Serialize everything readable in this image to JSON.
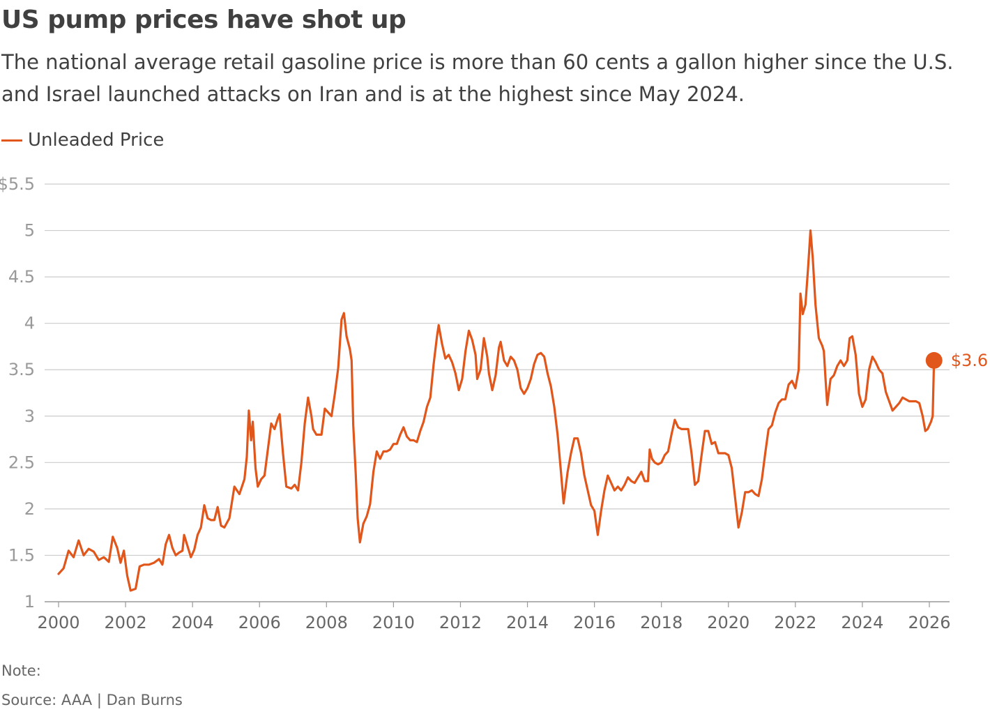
{
  "header": {
    "title": "US pump prices have shot up",
    "subtitle": "The national average retail gasoline price is more than 60 cents a gallon higher since the U.S. and Israel launched attacks on Iran and is at the highest since May 2024."
  },
  "footer": {
    "note": "Note:",
    "source": "Source: AAA | Dan Burns"
  },
  "colors": {
    "series": "#e0561b",
    "grid": "#cccccc",
    "text": "#404040"
  },
  "chart_data": {
    "type": "line",
    "title": "US pump prices have shot up",
    "xlabel": "",
    "ylabel": "",
    "xlim": [
      2000,
      2026.5
    ],
    "ylim": [
      1,
      5.5
    ],
    "grid": true,
    "legend_position": "top-left",
    "y_ticks": [
      {
        "value": 5.5,
        "label": "$5.5"
      },
      {
        "value": 5,
        "label": "5"
      },
      {
        "value": 4.5,
        "label": "4.5"
      },
      {
        "value": 4,
        "label": "4"
      },
      {
        "value": 3.5,
        "label": "3.5"
      },
      {
        "value": 3,
        "label": "3"
      },
      {
        "value": 2.5,
        "label": "2.5"
      },
      {
        "value": 2,
        "label": "2"
      },
      {
        "value": 1.5,
        "label": "1.5"
      },
      {
        "value": 1,
        "label": "1"
      }
    ],
    "x_ticks": [
      {
        "value": 2000,
        "label": "2000"
      },
      {
        "value": 2002,
        "label": "2002"
      },
      {
        "value": 2004,
        "label": "2004"
      },
      {
        "value": 2006,
        "label": "2006"
      },
      {
        "value": 2008,
        "label": "2008"
      },
      {
        "value": 2010,
        "label": "2010"
      },
      {
        "value": 2012,
        "label": "2012"
      },
      {
        "value": 2014,
        "label": "2014"
      },
      {
        "value": 2016,
        "label": "2016"
      },
      {
        "value": 2018,
        "label": "2018"
      },
      {
        "value": 2020,
        "label": "2020"
      },
      {
        "value": 2022,
        "label": "2022"
      },
      {
        "value": 2024,
        "label": "2024"
      },
      {
        "value": 2026,
        "label": "2026"
      }
    ],
    "series": [
      {
        "name": "Unleaded Price",
        "end_label": "$3.6",
        "points": [
          [
            2000.0,
            1.3
          ],
          [
            2000.15,
            1.36
          ],
          [
            2000.3,
            1.55
          ],
          [
            2000.45,
            1.48
          ],
          [
            2000.6,
            1.66
          ],
          [
            2000.75,
            1.5
          ],
          [
            2000.9,
            1.57
          ],
          [
            2001.05,
            1.54
          ],
          [
            2001.2,
            1.45
          ],
          [
            2001.35,
            1.48
          ],
          [
            2001.5,
            1.43
          ],
          [
            2001.62,
            1.7
          ],
          [
            2001.75,
            1.58
          ],
          [
            2001.85,
            1.42
          ],
          [
            2001.95,
            1.55
          ],
          [
            2002.05,
            1.28
          ],
          [
            2002.15,
            1.12
          ],
          [
            2002.3,
            1.14
          ],
          [
            2002.42,
            1.38
          ],
          [
            2002.55,
            1.4
          ],
          [
            2002.7,
            1.4
          ],
          [
            2002.85,
            1.42
          ],
          [
            2003.0,
            1.46
          ],
          [
            2003.1,
            1.4
          ],
          [
            2003.2,
            1.62
          ],
          [
            2003.3,
            1.72
          ],
          [
            2003.4,
            1.58
          ],
          [
            2003.5,
            1.5
          ],
          [
            2003.6,
            1.53
          ],
          [
            2003.7,
            1.55
          ],
          [
            2003.75,
            1.72
          ],
          [
            2003.85,
            1.6
          ],
          [
            2003.95,
            1.48
          ],
          [
            2004.05,
            1.56
          ],
          [
            2004.15,
            1.72
          ],
          [
            2004.25,
            1.8
          ],
          [
            2004.35,
            2.04
          ],
          [
            2004.45,
            1.9
          ],
          [
            2004.55,
            1.88
          ],
          [
            2004.65,
            1.88
          ],
          [
            2004.75,
            2.02
          ],
          [
            2004.85,
            1.82
          ],
          [
            2004.95,
            1.8
          ],
          [
            2005.1,
            1.9
          ],
          [
            2005.25,
            2.24
          ],
          [
            2005.4,
            2.16
          ],
          [
            2005.55,
            2.32
          ],
          [
            2005.62,
            2.56
          ],
          [
            2005.68,
            3.06
          ],
          [
            2005.75,
            2.74
          ],
          [
            2005.8,
            2.94
          ],
          [
            2005.88,
            2.44
          ],
          [
            2005.95,
            2.24
          ],
          [
            2006.05,
            2.32
          ],
          [
            2006.15,
            2.36
          ],
          [
            2006.25,
            2.64
          ],
          [
            2006.35,
            2.92
          ],
          [
            2006.45,
            2.86
          ],
          [
            2006.55,
            2.98
          ],
          [
            2006.6,
            3.02
          ],
          [
            2006.7,
            2.6
          ],
          [
            2006.8,
            2.24
          ],
          [
            2006.95,
            2.22
          ],
          [
            2007.05,
            2.26
          ],
          [
            2007.15,
            2.2
          ],
          [
            2007.25,
            2.5
          ],
          [
            2007.35,
            2.92
          ],
          [
            2007.45,
            3.2
          ],
          [
            2007.55,
            3.0
          ],
          [
            2007.6,
            2.86
          ],
          [
            2007.7,
            2.8
          ],
          [
            2007.85,
            2.8
          ],
          [
            2007.95,
            3.08
          ],
          [
            2008.05,
            3.04
          ],
          [
            2008.15,
            3.0
          ],
          [
            2008.25,
            3.24
          ],
          [
            2008.35,
            3.52
          ],
          [
            2008.45,
            4.04
          ],
          [
            2008.52,
            4.11
          ],
          [
            2008.6,
            3.86
          ],
          [
            2008.7,
            3.72
          ],
          [
            2008.75,
            3.6
          ],
          [
            2008.8,
            2.9
          ],
          [
            2008.87,
            2.4
          ],
          [
            2008.93,
            1.9
          ],
          [
            2009.0,
            1.64
          ],
          [
            2009.1,
            1.84
          ],
          [
            2009.2,
            1.92
          ],
          [
            2009.3,
            2.05
          ],
          [
            2009.4,
            2.4
          ],
          [
            2009.5,
            2.62
          ],
          [
            2009.6,
            2.54
          ],
          [
            2009.7,
            2.62
          ],
          [
            2009.8,
            2.62
          ],
          [
            2009.9,
            2.64
          ],
          [
            2010.0,
            2.7
          ],
          [
            2010.1,
            2.7
          ],
          [
            2010.2,
            2.8
          ],
          [
            2010.3,
            2.88
          ],
          [
            2010.4,
            2.78
          ],
          [
            2010.5,
            2.74
          ],
          [
            2010.6,
            2.74
          ],
          [
            2010.7,
            2.72
          ],
          [
            2010.8,
            2.84
          ],
          [
            2010.9,
            2.94
          ],
          [
            2011.0,
            3.1
          ],
          [
            2011.1,
            3.2
          ],
          [
            2011.2,
            3.56
          ],
          [
            2011.3,
            3.86
          ],
          [
            2011.35,
            3.98
          ],
          [
            2011.45,
            3.78
          ],
          [
            2011.55,
            3.62
          ],
          [
            2011.65,
            3.66
          ],
          [
            2011.75,
            3.58
          ],
          [
            2011.85,
            3.46
          ],
          [
            2011.95,
            3.28
          ],
          [
            2012.05,
            3.4
          ],
          [
            2012.15,
            3.7
          ],
          [
            2012.25,
            3.92
          ],
          [
            2012.35,
            3.82
          ],
          [
            2012.45,
            3.66
          ],
          [
            2012.5,
            3.4
          ],
          [
            2012.6,
            3.5
          ],
          [
            2012.7,
            3.84
          ],
          [
            2012.8,
            3.64
          ],
          [
            2012.85,
            3.46
          ],
          [
            2012.95,
            3.28
          ],
          [
            2013.05,
            3.44
          ],
          [
            2013.15,
            3.74
          ],
          [
            2013.2,
            3.8
          ],
          [
            2013.3,
            3.6
          ],
          [
            2013.4,
            3.54
          ],
          [
            2013.5,
            3.64
          ],
          [
            2013.6,
            3.6
          ],
          [
            2013.7,
            3.5
          ],
          [
            2013.8,
            3.3
          ],
          [
            2013.9,
            3.24
          ],
          [
            2014.0,
            3.3
          ],
          [
            2014.1,
            3.4
          ],
          [
            2014.2,
            3.56
          ],
          [
            2014.3,
            3.66
          ],
          [
            2014.4,
            3.68
          ],
          [
            2014.5,
            3.64
          ],
          [
            2014.6,
            3.46
          ],
          [
            2014.7,
            3.32
          ],
          [
            2014.8,
            3.1
          ],
          [
            2014.9,
            2.8
          ],
          [
            2015.0,
            2.4
          ],
          [
            2015.08,
            2.06
          ],
          [
            2015.2,
            2.4
          ],
          [
            2015.3,
            2.6
          ],
          [
            2015.4,
            2.76
          ],
          [
            2015.5,
            2.76
          ],
          [
            2015.6,
            2.6
          ],
          [
            2015.7,
            2.36
          ],
          [
            2015.8,
            2.2
          ],
          [
            2015.9,
            2.04
          ],
          [
            2016.0,
            1.98
          ],
          [
            2016.1,
            1.72
          ],
          [
            2016.2,
            1.98
          ],
          [
            2016.3,
            2.2
          ],
          [
            2016.4,
            2.36
          ],
          [
            2016.5,
            2.28
          ],
          [
            2016.6,
            2.2
          ],
          [
            2016.7,
            2.24
          ],
          [
            2016.8,
            2.2
          ],
          [
            2016.9,
            2.26
          ],
          [
            2017.0,
            2.34
          ],
          [
            2017.1,
            2.3
          ],
          [
            2017.2,
            2.28
          ],
          [
            2017.3,
            2.34
          ],
          [
            2017.4,
            2.4
          ],
          [
            2017.5,
            2.3
          ],
          [
            2017.6,
            2.3
          ],
          [
            2017.65,
            2.64
          ],
          [
            2017.72,
            2.54
          ],
          [
            2017.8,
            2.5
          ],
          [
            2017.9,
            2.48
          ],
          [
            2018.0,
            2.5
          ],
          [
            2018.1,
            2.58
          ],
          [
            2018.2,
            2.62
          ],
          [
            2018.3,
            2.8
          ],
          [
            2018.4,
            2.96
          ],
          [
            2018.5,
            2.88
          ],
          [
            2018.6,
            2.86
          ],
          [
            2018.7,
            2.86
          ],
          [
            2018.8,
            2.86
          ],
          [
            2018.9,
            2.6
          ],
          [
            2019.0,
            2.26
          ],
          [
            2019.1,
            2.3
          ],
          [
            2019.2,
            2.58
          ],
          [
            2019.3,
            2.84
          ],
          [
            2019.4,
            2.84
          ],
          [
            2019.5,
            2.7
          ],
          [
            2019.6,
            2.72
          ],
          [
            2019.7,
            2.6
          ],
          [
            2019.8,
            2.6
          ],
          [
            2019.9,
            2.6
          ],
          [
            2020.0,
            2.58
          ],
          [
            2020.1,
            2.44
          ],
          [
            2020.2,
            2.12
          ],
          [
            2020.3,
            1.8
          ],
          [
            2020.4,
            1.96
          ],
          [
            2020.5,
            2.18
          ],
          [
            2020.6,
            2.18
          ],
          [
            2020.7,
            2.2
          ],
          [
            2020.8,
            2.16
          ],
          [
            2020.9,
            2.14
          ],
          [
            2021.0,
            2.32
          ],
          [
            2021.1,
            2.6
          ],
          [
            2021.2,
            2.86
          ],
          [
            2021.3,
            2.9
          ],
          [
            2021.4,
            3.04
          ],
          [
            2021.5,
            3.14
          ],
          [
            2021.6,
            3.18
          ],
          [
            2021.7,
            3.18
          ],
          [
            2021.8,
            3.34
          ],
          [
            2021.9,
            3.38
          ],
          [
            2022.0,
            3.3
          ],
          [
            2022.1,
            3.5
          ],
          [
            2022.15,
            4.32
          ],
          [
            2022.22,
            4.1
          ],
          [
            2022.3,
            4.2
          ],
          [
            2022.38,
            4.6
          ],
          [
            2022.45,
            5.0
          ],
          [
            2022.52,
            4.7
          ],
          [
            2022.6,
            4.2
          ],
          [
            2022.7,
            3.84
          ],
          [
            2022.8,
            3.76
          ],
          [
            2022.85,
            3.7
          ],
          [
            2022.9,
            3.4
          ],
          [
            2022.95,
            3.12
          ],
          [
            2023.05,
            3.4
          ],
          [
            2023.15,
            3.44
          ],
          [
            2023.25,
            3.54
          ],
          [
            2023.35,
            3.6
          ],
          [
            2023.45,
            3.54
          ],
          [
            2023.55,
            3.6
          ],
          [
            2023.62,
            3.84
          ],
          [
            2023.7,
            3.86
          ],
          [
            2023.8,
            3.66
          ],
          [
            2023.9,
            3.24
          ],
          [
            2024.0,
            3.1
          ],
          [
            2024.1,
            3.18
          ],
          [
            2024.2,
            3.5
          ],
          [
            2024.3,
            3.64
          ],
          [
            2024.4,
            3.58
          ],
          [
            2024.5,
            3.5
          ],
          [
            2024.6,
            3.46
          ],
          [
            2024.7,
            3.26
          ],
          [
            2024.8,
            3.16
          ],
          [
            2024.9,
            3.06
          ],
          [
            2025.0,
            3.1
          ],
          [
            2025.1,
            3.14
          ],
          [
            2025.2,
            3.2
          ],
          [
            2025.3,
            3.18
          ],
          [
            2025.4,
            3.16
          ],
          [
            2025.5,
            3.16
          ],
          [
            2025.6,
            3.16
          ],
          [
            2025.7,
            3.14
          ],
          [
            2025.8,
            3.0
          ],
          [
            2025.88,
            2.84
          ],
          [
            2025.95,
            2.86
          ],
          [
            2026.05,
            2.94
          ],
          [
            2026.1,
            3.0
          ],
          [
            2026.14,
            3.6
          ]
        ]
      }
    ]
  }
}
